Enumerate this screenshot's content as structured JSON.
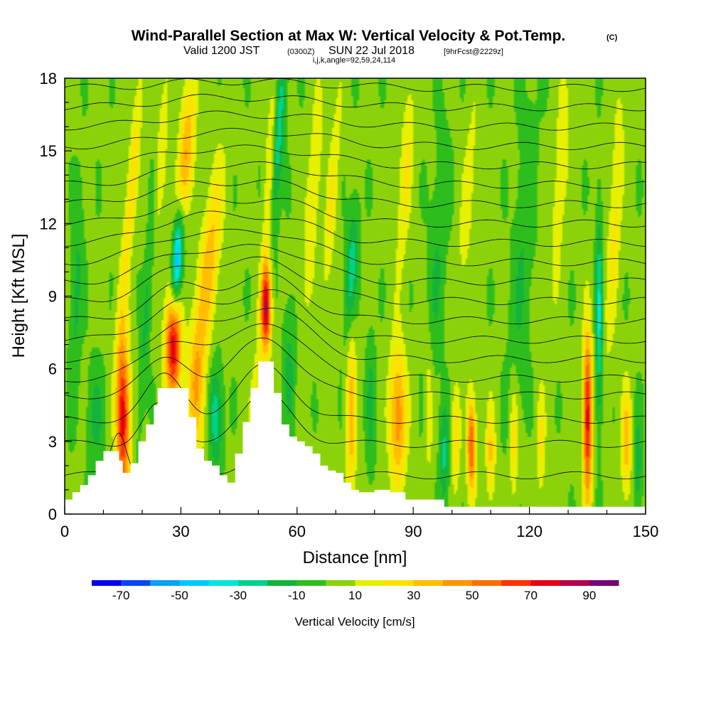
{
  "title": {
    "main": "Wind-Parallel Section at Max W: Vertical Velocity & Pot.Temp.",
    "copyright": "(C)",
    "valid_prefix": "Valid 1200 JST",
    "valid_zulu": "(0300Z)",
    "valid_date": "SUN 22 Jul 2018",
    "forecast": "[9hrFcst@2229z]",
    "indices": "i,j,k,angle=92,59,24,114"
  },
  "chart_data": {
    "type": "heatmap",
    "xlabel": "Distance [nm]",
    "ylabel": "Height [Kft MSL]",
    "xlim": [
      0,
      150
    ],
    "ylim": [
      0,
      18
    ],
    "x_ticks": [
      "0",
      "30",
      "60",
      "90",
      "120",
      "150"
    ],
    "y_ticks": [
      "0",
      "3",
      "6",
      "9",
      "12",
      "15",
      "18"
    ],
    "colorbar": {
      "label": "Vertical Velocity [cm/s]",
      "tick_labels": [
        "-70",
        "-50",
        "-30",
        "-10",
        "10",
        "30",
        "50",
        "70",
        "90"
      ],
      "bins": [
        {
          "from": -80,
          "to": -70,
          "color": "#0000ee"
        },
        {
          "from": -70,
          "to": -60,
          "color": "#0a46f5"
        },
        {
          "from": -60,
          "to": -50,
          "color": "#0aa0f5"
        },
        {
          "from": -50,
          "to": -40,
          "color": "#00c8ff"
        },
        {
          "from": -40,
          "to": -30,
          "color": "#00e6dc"
        },
        {
          "from": -30,
          "to": -20,
          "color": "#00d28c"
        },
        {
          "from": -20,
          "to": -10,
          "color": "#14b43c"
        },
        {
          "from": -10,
          "to": 0,
          "color": "#2dbe1e"
        },
        {
          "from": 0,
          "to": 10,
          "color": "#8cd20a"
        },
        {
          "from": 10,
          "to": 20,
          "color": "#e6f000"
        },
        {
          "from": 20,
          "to": 30,
          "color": "#ffe100"
        },
        {
          "from": 30,
          "to": 40,
          "color": "#ffbe00"
        },
        {
          "from": 40,
          "to": 50,
          "color": "#ff9600"
        },
        {
          "from": 50,
          "to": 60,
          "color": "#ff6e00"
        },
        {
          "from": 60,
          "to": 70,
          "color": "#ff3200"
        },
        {
          "from": 70,
          "to": 80,
          "color": "#e60014"
        },
        {
          "from": 80,
          "to": 90,
          "color": "#b4004b"
        },
        {
          "from": 90,
          "to": 100,
          "color": "#780078"
        }
      ]
    },
    "terrain": [
      [
        0,
        0.6
      ],
      [
        2,
        0.9
      ],
      [
        4,
        1.2
      ],
      [
        6,
        1.6
      ],
      [
        8,
        2.2
      ],
      [
        10,
        2.6
      ],
      [
        12,
        2.6
      ],
      [
        14,
        2.2
      ],
      [
        15,
        1.7
      ],
      [
        16,
        1.7
      ],
      [
        17,
        2.1
      ],
      [
        19,
        3.0
      ],
      [
        21,
        3.7
      ],
      [
        23,
        4.5
      ],
      [
        24,
        5.2
      ],
      [
        28,
        5.2
      ],
      [
        30,
        5.2
      ],
      [
        32,
        4.0
      ],
      [
        34,
        2.7
      ],
      [
        36,
        2.2
      ],
      [
        38,
        2.0
      ],
      [
        40,
        1.6
      ],
      [
        42,
        1.3
      ],
      [
        44,
        2.5
      ],
      [
        46,
        3.8
      ],
      [
        48,
        5.2
      ],
      [
        50,
        6.3
      ],
      [
        52,
        6.3
      ],
      [
        54,
        5.0
      ],
      [
        56,
        3.7
      ],
      [
        58,
        3.2
      ],
      [
        60,
        3.0
      ],
      [
        62,
        2.8
      ],
      [
        64,
        2.5
      ],
      [
        66,
        2.0
      ],
      [
        68,
        1.8
      ],
      [
        70,
        1.7
      ],
      [
        72,
        1.3
      ],
      [
        74,
        1.0
      ],
      [
        76,
        0.9
      ],
      [
        80,
        1.0
      ],
      [
        84,
        0.9
      ],
      [
        88,
        0.6
      ],
      [
        94,
        0.6
      ],
      [
        98,
        0.3
      ],
      [
        150,
        0.3
      ]
    ],
    "vertical_velocity_cells": [
      {
        "x": 15,
        "y": 4.0,
        "sx": 1.2,
        "sy": 2.4,
        "tilt": 0,
        "w": 75
      },
      {
        "x": 28,
        "y": 7.0,
        "sx": 1.4,
        "sy": 1.6,
        "tilt": 0,
        "w": 80
      },
      {
        "x": 31,
        "y": 14.5,
        "sx": 1.4,
        "sy": 2.5,
        "tilt": 0.55,
        "w": 40
      },
      {
        "x": 24,
        "y": 14.0,
        "sx": 1.1,
        "sy": 3.5,
        "tilt": 0.5,
        "w": 25
      },
      {
        "x": 17,
        "y": 13.0,
        "sx": 1.0,
        "sy": 4.0,
        "tilt": 0.5,
        "w": 25
      },
      {
        "x": 37,
        "y": 10.0,
        "sx": 1.8,
        "sy": 3.0,
        "tilt": 0.6,
        "w": 35
      },
      {
        "x": 29,
        "y": 10.5,
        "sx": 1.0,
        "sy": 1.6,
        "tilt": 0.3,
        "w": -65
      },
      {
        "x": 22,
        "y": 10.5,
        "sx": 0.9,
        "sy": 4.0,
        "tilt": 0.4,
        "w": -25
      },
      {
        "x": 39,
        "y": 4.0,
        "sx": 1.2,
        "sy": 1.4,
        "tilt": 0,
        "w": -30
      },
      {
        "x": 34,
        "y": 5.0,
        "sx": 1.6,
        "sy": 2.0,
        "tilt": 0,
        "w": 30
      },
      {
        "x": 52,
        "y": 8.5,
        "sx": 0.9,
        "sy": 1.2,
        "tilt": 0,
        "w": 75
      },
      {
        "x": 53,
        "y": 13.5,
        "sx": 1.0,
        "sy": 4.0,
        "tilt": 0.3,
        "w": 25
      },
      {
        "x": 55,
        "y": 15.5,
        "sx": 1.0,
        "sy": 3.0,
        "tilt": 0.4,
        "w": -35
      },
      {
        "x": 50,
        "y": 3.5,
        "sx": 1.4,
        "sy": 2.0,
        "tilt": 0,
        "w": 25
      },
      {
        "x": 58,
        "y": 6.0,
        "sx": 1.1,
        "sy": 2.0,
        "tilt": 0,
        "w": -15
      },
      {
        "x": 64,
        "y": 13.0,
        "sx": 1.2,
        "sy": 3.5,
        "tilt": 0.4,
        "w": 20
      },
      {
        "x": 69,
        "y": 13.0,
        "sx": 1.0,
        "sy": 3.0,
        "tilt": 0.4,
        "w": 20
      },
      {
        "x": 74,
        "y": 10.0,
        "sx": 1.0,
        "sy": 1.8,
        "tilt": 0.3,
        "w": -30
      },
      {
        "x": 74,
        "y": 4.0,
        "sx": 0.9,
        "sy": 2.5,
        "tilt": 0,
        "w": 35
      },
      {
        "x": 79,
        "y": 4.5,
        "sx": 0.8,
        "sy": 2.0,
        "tilt": 0,
        "w": -15
      },
      {
        "x": 86,
        "y": 4.0,
        "sx": 1.6,
        "sy": 2.0,
        "tilt": 0,
        "w": 45
      },
      {
        "x": 88,
        "y": 14.0,
        "sx": 1.2,
        "sy": 3.0,
        "tilt": 0.35,
        "w": 20
      },
      {
        "x": 94,
        "y": 4.5,
        "sx": 0.8,
        "sy": 2.0,
        "tilt": 0,
        "w": 20
      },
      {
        "x": 98,
        "y": 2.5,
        "sx": 0.8,
        "sy": 1.5,
        "tilt": 0,
        "w": -25
      },
      {
        "x": 105,
        "y": 2.8,
        "sx": 0.8,
        "sy": 1.4,
        "tilt": 0,
        "w": 60
      },
      {
        "x": 101,
        "y": 3.2,
        "sx": 0.8,
        "sy": 1.5,
        "tilt": 0,
        "w": 25
      },
      {
        "x": 110,
        "y": 2.5,
        "sx": 0.8,
        "sy": 1.4,
        "tilt": 0,
        "w": 30
      },
      {
        "x": 104,
        "y": 13.0,
        "sx": 1.2,
        "sy": 3.0,
        "tilt": 0.4,
        "w": 15
      },
      {
        "x": 116,
        "y": 3.0,
        "sx": 0.8,
        "sy": 1.8,
        "tilt": 0,
        "w": 25
      },
      {
        "x": 123,
        "y": 3.0,
        "sx": 0.8,
        "sy": 1.6,
        "tilt": 0,
        "w": 20
      },
      {
        "x": 135,
        "y": 4.0,
        "sx": 0.8,
        "sy": 2.5,
        "tilt": 0,
        "w": 75
      },
      {
        "x": 138,
        "y": 8.0,
        "sx": 0.6,
        "sy": 3.0,
        "tilt": 0,
        "w": -35
      },
      {
        "x": 145,
        "y": 3.0,
        "sx": 0.9,
        "sy": 1.6,
        "tilt": 0,
        "w": 35
      },
      {
        "x": 148,
        "y": 2.0,
        "sx": 0.8,
        "sy": 1.4,
        "tilt": 0,
        "w": -20
      },
      {
        "x": 142,
        "y": 12.0,
        "sx": 1.2,
        "sy": 4.0,
        "tilt": 0.3,
        "w": 20
      },
      {
        "x": 128,
        "y": 14.0,
        "sx": 1.4,
        "sy": 4.0,
        "tilt": 0.35,
        "w": 15
      },
      {
        "x": 3,
        "y": 9.0,
        "sx": 1.0,
        "sy": 3.0,
        "tilt": 0.2,
        "w": -15
      },
      {
        "x": 8,
        "y": 4.0,
        "sx": 1.5,
        "sy": 1.5,
        "tilt": 0,
        "w": -15
      },
      {
        "x": 118,
        "y": 10.0,
        "sx": 1.8,
        "sy": 5.0,
        "tilt": 0.3,
        "w": -12
      },
      {
        "x": 96,
        "y": 10.0,
        "sx": 1.5,
        "sy": 4.0,
        "tilt": 0.3,
        "w": -12
      }
    ],
    "theta_contours": [
      {
        "base": 1.6,
        "bump": [
          [
            14,
            1.8,
            2.0
          ],
          [
            52,
            1.0,
            6.0
          ]
        ]
      },
      {
        "base": 2.9,
        "bump": [
          [
            24,
            1.6,
            4.0
          ],
          [
            52,
            2.0,
            7.0
          ]
        ]
      },
      {
        "base": 3.9,
        "bump": [
          [
            26,
            1.8,
            5.0
          ],
          [
            52,
            2.2,
            7.0
          ]
        ]
      },
      {
        "base": 4.9,
        "bump": [
          [
            27,
            1.6,
            6.0
          ],
          [
            52,
            2.4,
            8.0
          ]
        ]
      },
      {
        "base": 5.6,
        "bump": [
          [
            28,
            1.6,
            7.0
          ],
          [
            52,
            2.4,
            9.0
          ]
        ]
      },
      {
        "base": 6.4,
        "bump": [
          [
            29,
            1.4,
            7.0
          ],
          [
            52,
            2.2,
            10.0
          ]
        ]
      },
      {
        "base": 7.2,
        "bump": [
          [
            29,
            1.4,
            8.0
          ],
          [
            52,
            2.0,
            10.0
          ]
        ]
      },
      {
        "base": 8.0,
        "bump": [
          [
            29,
            1.3,
            8.0
          ],
          [
            52,
            1.8,
            10.0
          ]
        ]
      },
      {
        "base": 8.8,
        "bump": [
          [
            30,
            1.2,
            9.0
          ],
          [
            52,
            1.6,
            11.0
          ]
        ]
      },
      {
        "base": 9.6,
        "bump": [
          [
            30,
            1.1,
            9.0
          ],
          [
            53,
            1.4,
            11.0
          ]
        ]
      },
      {
        "base": 10.4,
        "bump": [
          [
            30,
            1.0,
            10.0
          ],
          [
            53,
            1.2,
            11.0
          ]
        ]
      },
      {
        "base": 11.2,
        "bump": [
          [
            31,
            0.9,
            10.0
          ],
          [
            53,
            1.0,
            12.0
          ]
        ]
      },
      {
        "base": 12.0,
        "bump": [
          [
            31,
            0.8,
            10.0
          ],
          [
            54,
            0.9,
            12.0
          ]
        ]
      },
      {
        "base": 12.8,
        "bump": [
          [
            31,
            0.7,
            11.0
          ],
          [
            54,
            0.8,
            12.0
          ]
        ]
      },
      {
        "base": 13.6,
        "bump": [
          [
            32,
            0.6,
            11.0
          ],
          [
            55,
            0.7,
            13.0
          ]
        ]
      },
      {
        "base": 14.4,
        "bump": [
          [
            32,
            0.5,
            11.0
          ],
          [
            55,
            0.6,
            13.0
          ]
        ]
      },
      {
        "base": 15.2,
        "bump": [
          [
            33,
            0.4,
            12.0
          ],
          [
            56,
            0.5,
            13.0
          ]
        ]
      },
      {
        "base": 16.0,
        "bump": [
          [
            33,
            0.35,
            12.0
          ],
          [
            56,
            0.4,
            14.0
          ]
        ]
      },
      {
        "base": 16.8,
        "bump": [
          [
            34,
            0.3,
            12.0
          ],
          [
            57,
            0.3,
            14.0
          ]
        ]
      },
      {
        "base": 17.6,
        "bump": [
          [
            34,
            0.2,
            12.0
          ],
          [
            57,
            0.2,
            14.0
          ]
        ]
      }
    ]
  }
}
